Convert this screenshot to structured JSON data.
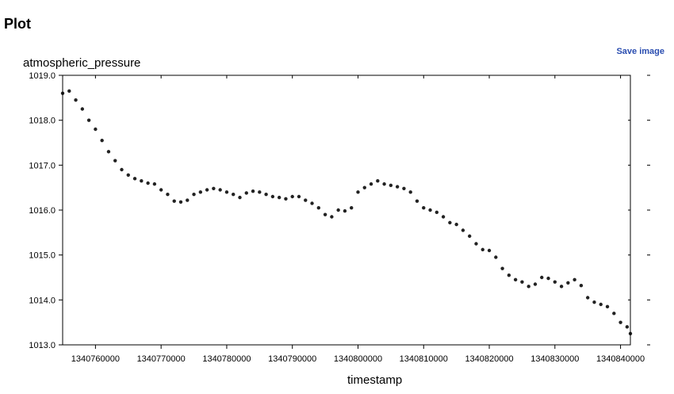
{
  "header": {
    "title": "Plot"
  },
  "actions": {
    "save_label": "Save image"
  },
  "chart_data": {
    "type": "scatter",
    "title": "",
    "xlabel": "timestamp",
    "ylabel": "atmospheric_pressure",
    "xlim": [
      1340755000,
      1340841500
    ],
    "ylim": [
      1013.0,
      1019.0
    ],
    "x_ticks": [
      1340760000,
      1340770000,
      1340780000,
      1340790000,
      1340800000,
      1340810000,
      1340820000,
      1340830000,
      1340840000
    ],
    "x_tick_labels": [
      "1340760000",
      "1340770000",
      "1340780000",
      "1340790000",
      "1340800000",
      "1340810000",
      "1340820000",
      "1340830000",
      "1340840000"
    ],
    "y_ticks": [
      1013.0,
      1014.0,
      1015.0,
      1016.0,
      1017.0,
      1018.0,
      1019.0
    ],
    "y_tick_labels": [
      "1013.0",
      "1014.0",
      "1015.0",
      "1016.0",
      "1017.0",
      "1018.0",
      "1019.0"
    ],
    "grid": false,
    "marker_color": "#222222",
    "series": [
      {
        "x": [
          1340755000,
          1340756000,
          1340757000,
          1340758000,
          1340759000,
          1340760000,
          1340761000,
          1340762000,
          1340763000,
          1340764000,
          1340765000,
          1340766000,
          1340767000,
          1340768000,
          1340769000,
          1340770000,
          1340771000,
          1340772000,
          1340773000,
          1340774000,
          1340775000,
          1340776000,
          1340777000,
          1340778000,
          1340779000,
          1340780000,
          1340781000,
          1340782000,
          1340783000,
          1340784000,
          1340785000,
          1340786000,
          1340787000,
          1340788000,
          1340789000,
          1340790000,
          1340791000,
          1340792000,
          1340793000,
          1340794000,
          1340795000,
          1340796000,
          1340797000,
          1340798000,
          1340799000,
          1340800000,
          1340801000,
          1340802000,
          1340803000,
          1340804000,
          1340805000,
          1340806000,
          1340807000,
          1340808000,
          1340809000,
          1340810000,
          1340811000,
          1340812000,
          1340813000,
          1340814000,
          1340815000,
          1340816000,
          1340817000,
          1340818000,
          1340819000,
          1340820000,
          1340821000,
          1340822000,
          1340823000,
          1340824000,
          1340825000,
          1340826000,
          1340827000,
          1340828000,
          1340829000,
          1340830000,
          1340831000,
          1340832000,
          1340833000,
          1340834000,
          1340835000,
          1340836000,
          1340837000,
          1340838000,
          1340839000,
          1340840000,
          1340841000,
          1340841500
        ],
        "y": [
          1018.6,
          1018.65,
          1018.45,
          1018.25,
          1018.0,
          1017.8,
          1017.55,
          1017.3,
          1017.1,
          1016.9,
          1016.78,
          1016.7,
          1016.65,
          1016.6,
          1016.58,
          1016.45,
          1016.35,
          1016.2,
          1016.18,
          1016.22,
          1016.35,
          1016.4,
          1016.45,
          1016.48,
          1016.45,
          1016.4,
          1016.35,
          1016.28,
          1016.38,
          1016.42,
          1016.4,
          1016.35,
          1016.3,
          1016.28,
          1016.25,
          1016.3,
          1016.3,
          1016.22,
          1016.15,
          1016.05,
          1015.9,
          1015.85,
          1016.0,
          1015.98,
          1016.05,
          1016.4,
          1016.5,
          1016.58,
          1016.65,
          1016.58,
          1016.55,
          1016.52,
          1016.48,
          1016.4,
          1016.2,
          1016.05,
          1016.0,
          1015.95,
          1015.85,
          1015.72,
          1015.68,
          1015.55,
          1015.42,
          1015.25,
          1015.12,
          1015.1,
          1014.95,
          1014.7,
          1014.55,
          1014.45,
          1014.4,
          1014.3,
          1014.35,
          1014.5,
          1014.48,
          1014.4,
          1014.3,
          1014.38,
          1014.45,
          1014.32,
          1014.05,
          1013.95,
          1013.9,
          1013.85,
          1013.7,
          1013.5,
          1013.4,
          1013.25
        ]
      }
    ]
  }
}
